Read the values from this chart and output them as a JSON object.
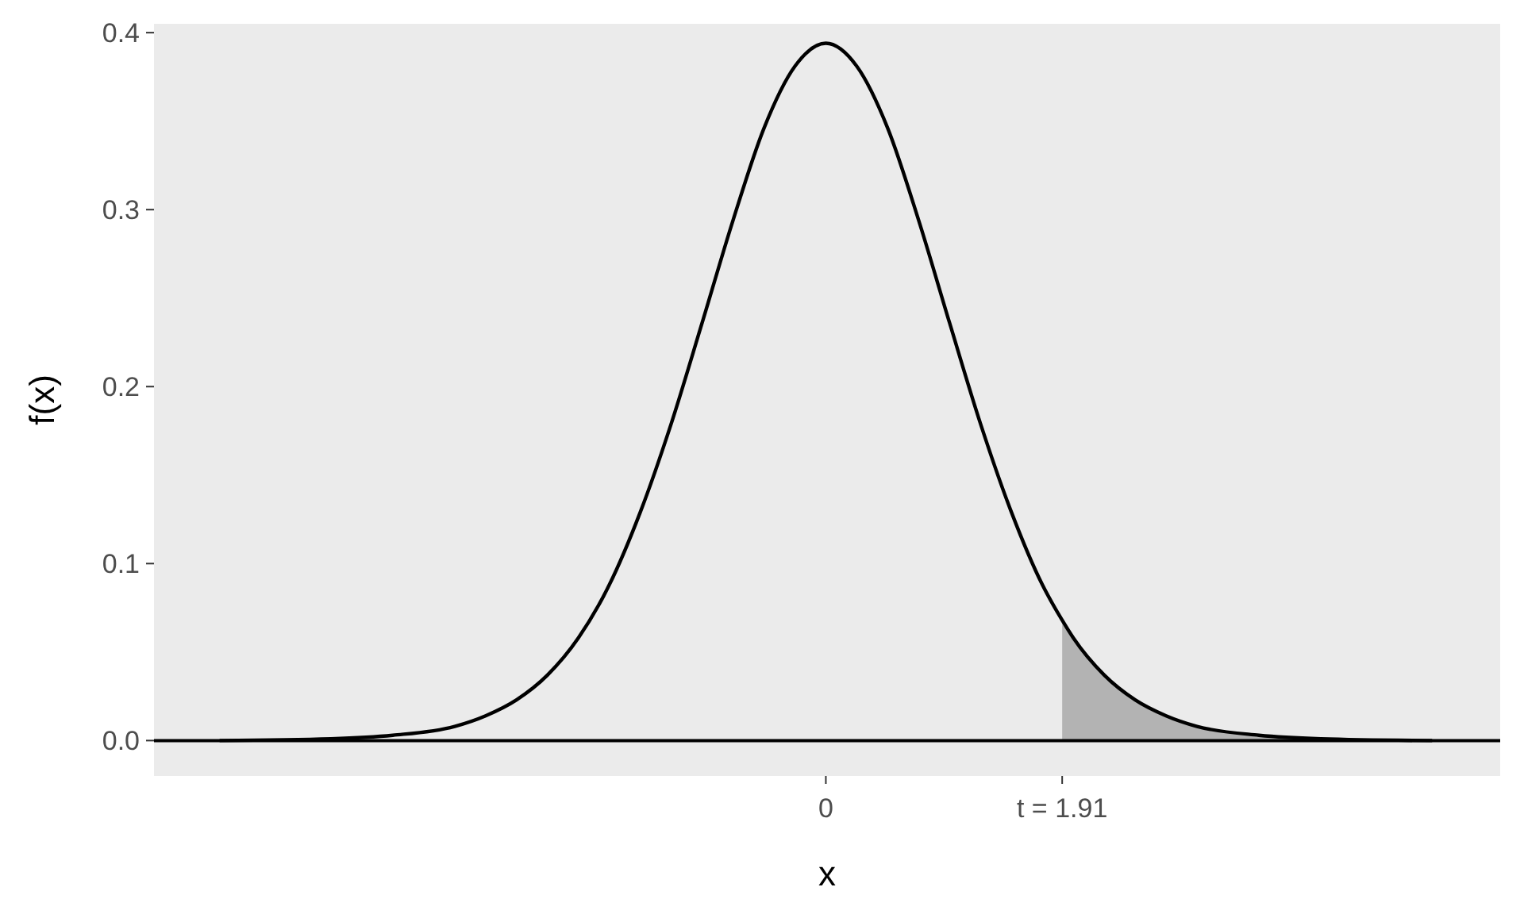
{
  "chart_data": {
    "type": "line",
    "xlabel": "x",
    "ylabel": "f(x)",
    "xlim": [
      -5.43,
      5.45
    ],
    "ylim": [
      -0.02,
      0.405
    ],
    "xticks": [
      0,
      {
        "value": 1.91,
        "label": "t = 1.91"
      }
    ],
    "yticks": [
      {
        "value": 0,
        "label": "0.0"
      },
      {
        "value": 0.1,
        "label": "0.1"
      },
      {
        "value": 0.2,
        "label": "0.2"
      },
      {
        "value": 0.3,
        "label": "0.3"
      },
      {
        "value": 0.4,
        "label": "0.4"
      }
    ],
    "grid": false,
    "marker": "none",
    "line_style": "solid",
    "ref_lines": [
      {
        "axis": "y",
        "value": 0,
        "color": "#000000"
      }
    ],
    "series": [
      {
        "type": "area",
        "color": "#b3b3b3",
        "x": [
          1.91,
          2,
          2.25,
          2.5,
          2.75,
          3,
          3.5,
          4,
          4.9
        ],
        "values": [
          0.068,
          0.058,
          0.037,
          0.023,
          0.014,
          0.008,
          0.003,
          0.001,
          0
        ]
      },
      {
        "color": "#000000",
        "x": [
          -4.9,
          -4,
          -3.5,
          -3,
          -2.75,
          -2.5,
          -2.25,
          -2,
          -1.75,
          -1.5,
          -1.25,
          -1,
          -0.75,
          -0.5,
          -0.25,
          0,
          0.25,
          0.5,
          0.75,
          1,
          1.25,
          1.5,
          1.75,
          1.91,
          2,
          2.25,
          2.5,
          2.75,
          3,
          3.5,
          4,
          4.9
        ],
        "values": [
          0,
          0.001,
          0.003,
          0.008,
          0.014,
          0.023,
          0.037,
          0.058,
          0.088,
          0.129,
          0.179,
          0.236,
          0.294,
          0.346,
          0.381,
          0.394,
          0.381,
          0.346,
          0.294,
          0.236,
          0.179,
          0.129,
          0.088,
          0.068,
          0.058,
          0.037,
          0.023,
          0.014,
          0.008,
          0.003,
          0.001,
          0
        ]
      }
    ]
  }
}
